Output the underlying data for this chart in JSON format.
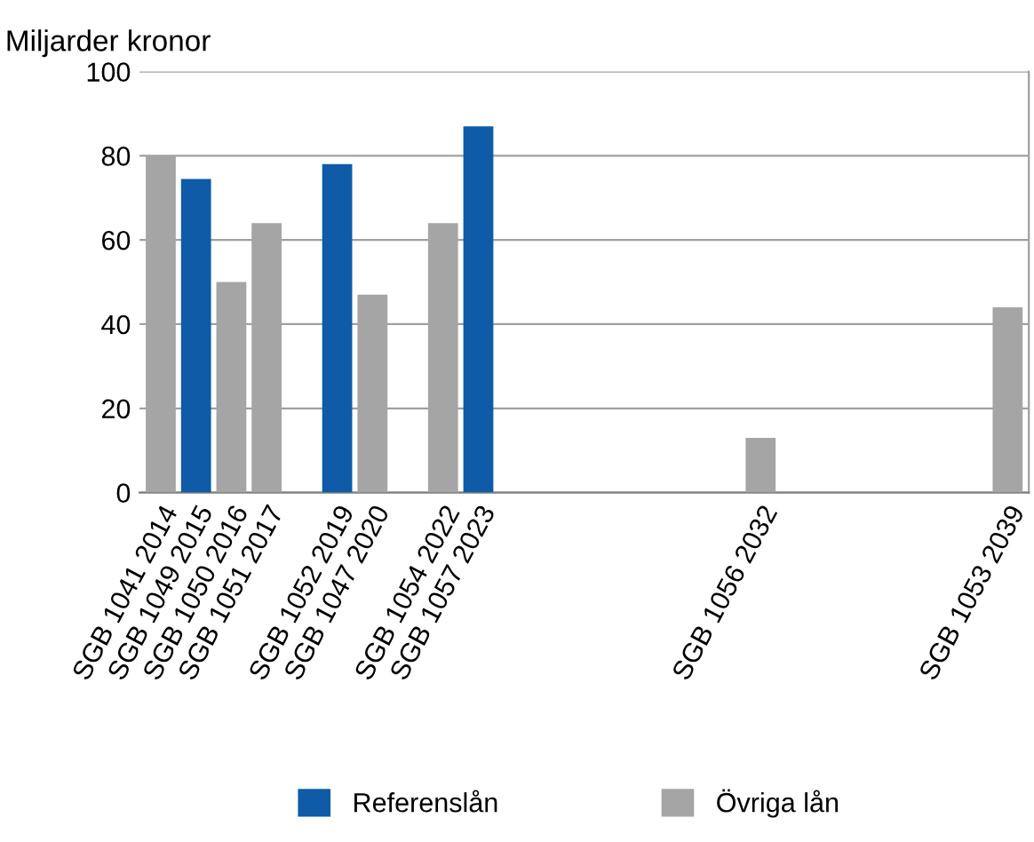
{
  "chart_data": {
    "type": "bar",
    "ylabel": "Miljarder kronor",
    "categories": [
      "SGB 1041 2014",
      "SGB 1049 2015",
      "SGB 1050 2016",
      "SGB 1051 2017",
      null,
      "SGB 1052 2019",
      "SGB 1047 2020",
      null,
      "SGB 1054 2022",
      "SGB 1057 2023",
      null,
      null,
      null,
      null,
      null,
      null,
      null,
      "SGB 1056 2032",
      null,
      null,
      null,
      null,
      null,
      null,
      "SGB 1053 2039"
    ],
    "series": [
      {
        "name": "Referenslån",
        "color": "#0f5ba7",
        "values": [
          null,
          74.5,
          null,
          null,
          null,
          78,
          null,
          null,
          null,
          87,
          null,
          null,
          null,
          null,
          null,
          null,
          null,
          null,
          null,
          null,
          null,
          null,
          null,
          null,
          null
        ]
      },
      {
        "name": "Övriga lån",
        "color": "#a5a5a5",
        "values": [
          80,
          null,
          50,
          64,
          null,
          null,
          47,
          null,
          64,
          null,
          null,
          null,
          null,
          null,
          null,
          null,
          null,
          13,
          null,
          null,
          null,
          null,
          null,
          null,
          44
        ]
      }
    ],
    "ylim": [
      0,
      100
    ],
    "yticks": [
      0,
      20,
      40,
      60,
      80,
      100
    ],
    "grid": "y",
    "legend": "bottom"
  }
}
